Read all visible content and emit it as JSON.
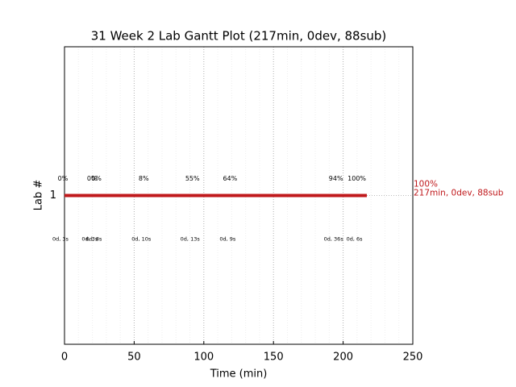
{
  "chart_data": {
    "type": "gantt",
    "title": "31 Week 2 Lab Gantt Plot (217min, 0dev, 88sub)",
    "xlabel": "Time (min)",
    "ylabel": "Lab #",
    "categories": [
      "1"
    ],
    "series": [
      {
        "name": "1",
        "color": "#c0191c",
        "start": 0,
        "end": 217
      }
    ],
    "end_labels": [
      "100%",
      "217min, 0dev, 88sub"
    ],
    "events": [
      {
        "x": 0,
        "label": "0%",
        "note": "0d, 3s"
      },
      {
        "x": 21,
        "label": "0%",
        "note": "0d, 3s"
      },
      {
        "x": 24,
        "label": "0%",
        "note": "0d, 8s"
      },
      {
        "x": 58,
        "label": "8%",
        "note": "0d, 10s"
      },
      {
        "x": 93,
        "label": "55%",
        "note": "0d, 13s"
      },
      {
        "x": 120,
        "label": "64%",
        "note": "0d, 9s"
      },
      {
        "x": 196,
        "label": "94%",
        "note": "0d, 36s"
      },
      {
        "x": 211,
        "label": "100%",
        "note": "0d, 6s"
      }
    ],
    "xlim": [
      0,
      250
    ],
    "xticks": [
      0,
      50,
      100,
      150,
      200,
      250
    ],
    "xminorticks": [
      10,
      20,
      30,
      40,
      60,
      70,
      80,
      90,
      110,
      120,
      130,
      140,
      160,
      170,
      180,
      190,
      210,
      220,
      230,
      240
    ],
    "grid": true
  }
}
